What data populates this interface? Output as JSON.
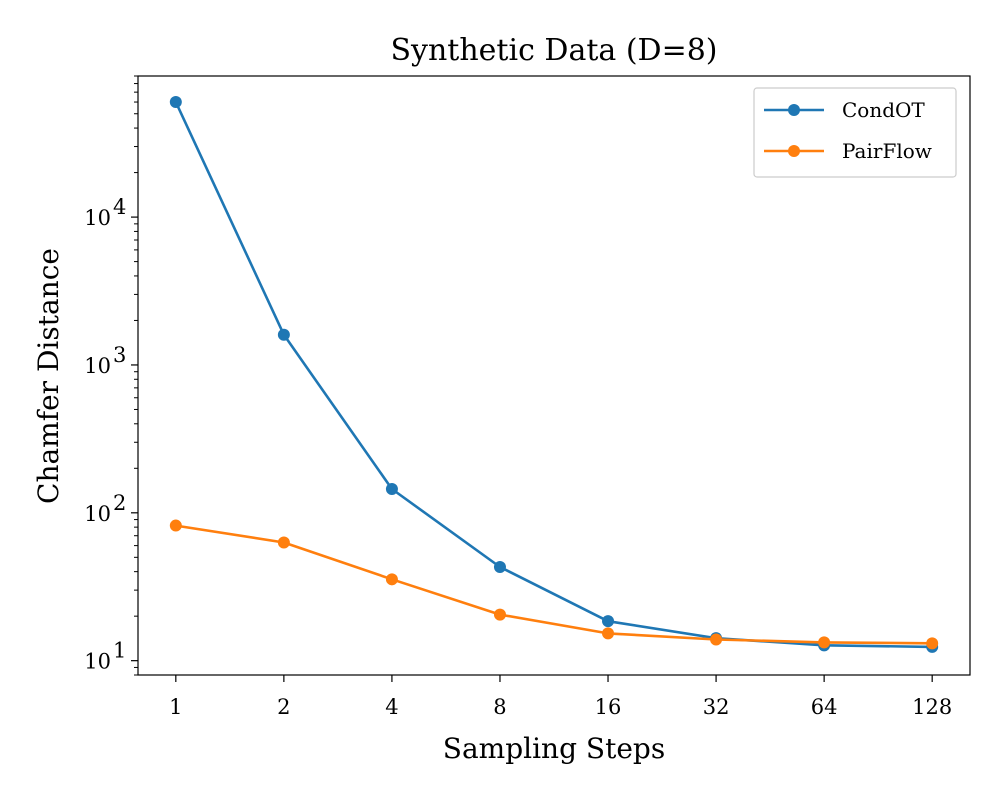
{
  "chart_data": {
    "type": "line",
    "title": "Synthetic Data (D=8)",
    "xlabel": "Sampling Steps",
    "ylabel": "Chamfer Distance",
    "x": [
      1,
      2,
      4,
      8,
      16,
      32,
      64,
      128
    ],
    "x_tick_labels": [
      "1",
      "2",
      "4",
      "8",
      "16",
      "32",
      "64",
      "128"
    ],
    "x_scale": "log2",
    "y_scale": "log",
    "ylim": [
      8,
      90000
    ],
    "y_ticks": [
      {
        "value": 10,
        "base": "10",
        "exp": "1"
      },
      {
        "value": 100,
        "base": "10",
        "exp": "2"
      },
      {
        "value": 1000,
        "base": "10",
        "exp": "3"
      },
      {
        "value": 10000,
        "base": "10",
        "exp": "4"
      }
    ],
    "grid": false,
    "legend_position": "top-right",
    "series": [
      {
        "name": "CondOT",
        "color": "#1f77b4",
        "values": [
          60000,
          1600,
          145,
          43,
          18.5,
          14.2,
          12.7,
          12.4
        ]
      },
      {
        "name": "PairFlow",
        "color": "#ff7f0e",
        "values": [
          82,
          63,
          35.5,
          20.5,
          15.3,
          13.9,
          13.3,
          13.1
        ]
      }
    ]
  }
}
